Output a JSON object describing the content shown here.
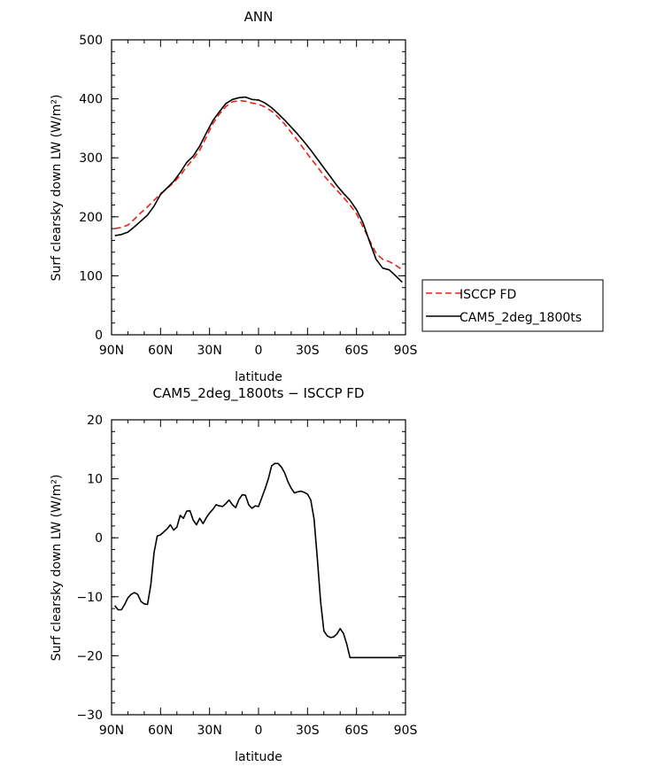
{
  "chart_data": [
    {
      "type": "line",
      "title": "ANN",
      "xlabel": "latitude",
      "ylabel": "Surf clearsky down LW (W/m²)",
      "xlim": [
        90,
        -90
      ],
      "ylim": [
        0,
        500
      ],
      "xticks": [
        90,
        60,
        30,
        0,
        -30,
        -60,
        -90
      ],
      "xtick_labels": [
        "90N",
        "60N",
        "30N",
        "0",
        "30S",
        "60S",
        "90S"
      ],
      "yticks": [
        0,
        100,
        200,
        300,
        400,
        500
      ],
      "ytick_labels": [
        "0",
        "100",
        "200",
        "300",
        "400",
        "500"
      ],
      "legend": {
        "position": "right",
        "entries": [
          "ISCCP FD",
          "CAM5_2deg_1800ts"
        ]
      },
      "series": [
        {
          "name": "ISCCP FD",
          "color": "#e8221d",
          "dash": true,
          "x": [
            88,
            84,
            80,
            76,
            72,
            68,
            64,
            60,
            56,
            52,
            48,
            44,
            40,
            36,
            32,
            28,
            24,
            20,
            16,
            12,
            8,
            4,
            0,
            -4,
            -8,
            -12,
            -16,
            -20,
            -24,
            -28,
            -32,
            -36,
            -40,
            -44,
            -48,
            -52,
            -56,
            -60,
            -64,
            -68,
            -72,
            -76,
            -80,
            -84,
            -88
          ],
          "y": [
            180,
            182,
            186,
            196,
            207,
            217,
            228,
            239,
            248,
            258,
            270,
            285,
            298,
            313,
            335,
            358,
            374,
            387,
            395,
            397,
            396,
            393,
            391,
            386,
            379,
            369,
            357,
            343,
            329,
            314,
            299,
            285,
            270,
            257,
            245,
            233,
            220,
            205,
            183,
            160,
            138,
            128,
            124,
            118,
            110
          ]
        },
        {
          "name": "CAM5_2deg_1800ts",
          "color": "#000000",
          "dash": false,
          "x": [
            88,
            84,
            80,
            76,
            72,
            68,
            64,
            60,
            56,
            52,
            48,
            44,
            40,
            36,
            32,
            28,
            24,
            20,
            16,
            12,
            8,
            4,
            0,
            -4,
            -8,
            -12,
            -16,
            -20,
            -24,
            -28,
            -32,
            -36,
            -40,
            -44,
            -48,
            -52,
            -56,
            -60,
            -64,
            -68,
            -72,
            -76,
            -80,
            -84,
            -88
          ],
          "y": [
            168,
            170,
            174,
            183,
            193,
            203,
            218,
            238,
            249,
            260,
            275,
            292,
            303,
            320,
            342,
            363,
            378,
            392,
            399,
            402,
            403,
            399,
            398,
            393,
            385,
            375,
            364,
            352,
            340,
            327,
            313,
            298,
            283,
            268,
            253,
            240,
            228,
            212,
            190,
            158,
            128,
            113,
            110,
            100,
            89
          ]
        }
      ]
    },
    {
      "type": "line",
      "title": "CAM5_2deg_1800ts − ISCCP FD",
      "xlabel": "latitude",
      "ylabel": "Surf clearsky down LW (W/m²)",
      "xlim": [
        90,
        -90
      ],
      "ylim": [
        -30,
        20
      ],
      "xticks": [
        90,
        60,
        30,
        0,
        -30,
        -60,
        -90
      ],
      "xtick_labels": [
        "90N",
        "60N",
        "30N",
        "0",
        "30S",
        "60S",
        "90S"
      ],
      "yticks": [
        -30,
        -20,
        -10,
        0,
        10,
        20
      ],
      "ytick_labels": [
        "−30",
        "−20",
        "−10",
        "0",
        "10",
        "20"
      ],
      "series": [
        {
          "color": "#000000",
          "dash": false,
          "x": [
            88,
            86,
            84,
            82,
            80,
            78,
            76,
            74,
            72,
            70,
            68,
            66,
            64,
            62,
            60,
            58,
            56,
            54,
            52,
            50,
            48,
            46,
            44,
            42,
            40,
            38,
            36,
            34,
            32,
            30,
            28,
            26,
            24,
            22,
            20,
            18,
            16,
            14,
            12,
            10,
            8,
            6,
            4,
            2,
            0,
            -2,
            -4,
            -6,
            -8,
            -10,
            -12,
            -14,
            -16,
            -18,
            -20,
            -22,
            -24,
            -26,
            -28,
            -30,
            -32,
            -34,
            -36,
            -38,
            -40,
            -42,
            -44,
            -46,
            -48,
            -50,
            -52,
            -54,
            -56,
            -58,
            -60,
            -62,
            -64,
            -66,
            -68,
            -70,
            -72,
            -74,
            -76,
            -78,
            -80,
            -82,
            -84,
            -86,
            -88
          ],
          "y": [
            -11.5,
            -12.2,
            -12.2,
            -11.3,
            -10.2,
            -9.6,
            -9.3,
            -9.6,
            -10.8,
            -11.2,
            -11.3,
            -8.0,
            -2.5,
            0.3,
            0.5,
            1.0,
            1.5,
            2.2,
            1.3,
            1.8,
            3.8,
            3.3,
            4.5,
            4.6,
            3.0,
            2.2,
            3.3,
            2.4,
            3.4,
            4.2,
            4.8,
            5.6,
            5.4,
            5.3,
            5.8,
            6.4,
            5.6,
            5.1,
            6.5,
            7.3,
            7.2,
            5.6,
            5.0,
            5.4,
            5.3,
            6.8,
            8.3,
            10.0,
            12.2,
            12.6,
            12.6,
            12.0,
            11.0,
            9.5,
            8.4,
            7.6,
            7.8,
            7.9,
            7.7,
            7.4,
            6.4,
            3.2,
            -3.5,
            -10.8,
            -15.8,
            -16.6,
            -16.9,
            -16.8,
            -16.3,
            -15.4,
            -16.2,
            -18.0,
            -20.3,
            -20.3,
            -20.3,
            -20.3,
            -20.3,
            -20.3,
            -20.3,
            -20.3,
            -20.3,
            -20.3,
            -20.3,
            -20.3,
            -20.3,
            -20.3,
            -20.3,
            -20.3,
            -20.3
          ]
        }
      ]
    }
  ]
}
